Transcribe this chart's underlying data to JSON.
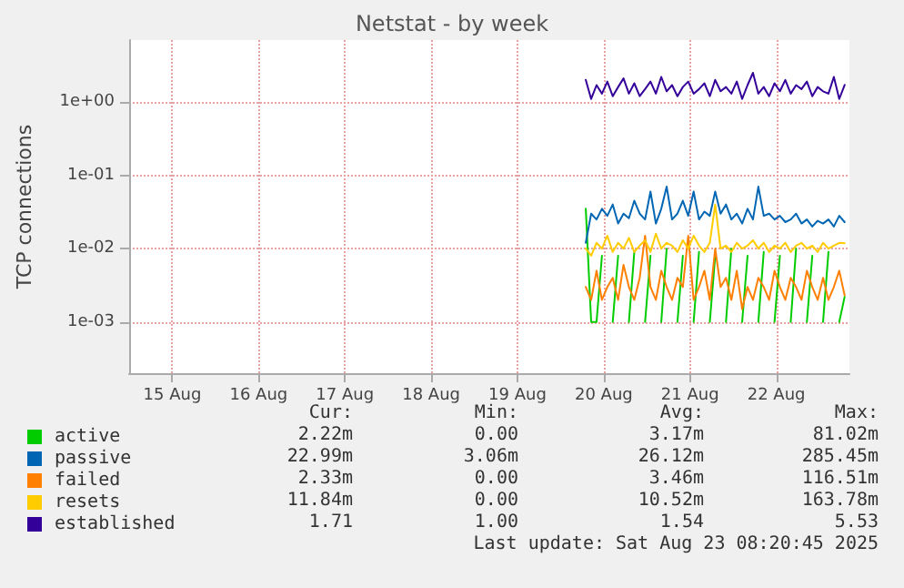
{
  "chart_data": {
    "type": "line",
    "title": "Netstat - by week",
    "ylabel": "TCP connections",
    "log": "y",
    "grid": true,
    "legend": "bottom left",
    "marker": "none",
    "line_style": "solid",
    "xlim": [
      "2025-08-15T00:00",
      "2025-08-23T08:20"
    ],
    "xticks": [
      {
        "value": "2025-08-15T12:00",
        "label": "15 Aug"
      },
      {
        "value": "2025-08-16T12:00",
        "label": "16 Aug"
      },
      {
        "value": "2025-08-17T12:00",
        "label": "17 Aug"
      },
      {
        "value": "2025-08-18T12:00",
        "label": "18 Aug"
      },
      {
        "value": "2025-08-19T12:00",
        "label": "19 Aug"
      },
      {
        "value": "2025-08-20T12:00",
        "label": "20 Aug"
      },
      {
        "value": "2025-08-21T12:00",
        "label": "21 Aug"
      },
      {
        "value": "2025-08-22T12:00",
        "label": "22 Aug"
      }
    ],
    "ylim": [
      0.0002,
      7
    ],
    "yticks": [
      {
        "value": 0.001,
        "label": "1e-03"
      },
      {
        "value": 0.01,
        "label": "1e-02"
      },
      {
        "value": 0.1,
        "label": "1e-01"
      },
      {
        "value": 1,
        "label": "1e+00"
      }
    ],
    "x": [
      "2025-08-20T07:00",
      "2025-08-20T08:30",
      "2025-08-20T10:00",
      "2025-08-20T11:30",
      "2025-08-20T13:00",
      "2025-08-20T14:30",
      "2025-08-20T16:00",
      "2025-08-20T17:30",
      "2025-08-20T19:00",
      "2025-08-20T20:30",
      "2025-08-20T22:00",
      "2025-08-20T23:30",
      "2025-08-21T01:00",
      "2025-08-21T02:30",
      "2025-08-21T04:00",
      "2025-08-21T05:30",
      "2025-08-21T07:00",
      "2025-08-21T08:30",
      "2025-08-21T10:00",
      "2025-08-21T11:30",
      "2025-08-21T13:00",
      "2025-08-21T14:30",
      "2025-08-21T16:00",
      "2025-08-21T17:30",
      "2025-08-21T19:00",
      "2025-08-21T20:30",
      "2025-08-21T22:00",
      "2025-08-21T23:30",
      "2025-08-22T01:00",
      "2025-08-22T02:30",
      "2025-08-22T04:00",
      "2025-08-22T05:30",
      "2025-08-22T07:00",
      "2025-08-22T08:30",
      "2025-08-22T10:00",
      "2025-08-22T11:30",
      "2025-08-22T13:00",
      "2025-08-22T14:30",
      "2025-08-22T16:00",
      "2025-08-22T17:30",
      "2025-08-22T19:00",
      "2025-08-22T20:30",
      "2025-08-22T22:00",
      "2025-08-22T23:30",
      "2025-08-23T01:00",
      "2025-08-23T02:30",
      "2025-08-23T04:00",
      "2025-08-23T05:30",
      "2025-08-23T07:00"
    ],
    "series": [
      {
        "name": "active",
        "color": "#00cc00",
        "values": [
          0.035,
          0.001,
          0.001,
          0.008,
          null,
          0.001,
          0.008,
          null,
          0.001,
          0.009,
          null,
          0.001,
          0.008,
          null,
          0.001,
          0.01,
          null,
          0.001,
          0.008,
          null,
          0.001,
          0.009,
          null,
          0.001,
          0.008,
          null,
          0.001,
          0.01,
          null,
          0.001,
          0.008,
          null,
          0.001,
          0.009,
          null,
          0.001,
          0.008,
          null,
          0.001,
          0.01,
          null,
          0.001,
          0.008,
          null,
          0.001,
          0.009,
          null,
          0.001,
          0.0022
        ]
      },
      {
        "name": "passive",
        "color": "#0066b3",
        "values": [
          0.012,
          0.03,
          0.025,
          0.035,
          0.028,
          0.04,
          0.022,
          0.03,
          0.026,
          0.045,
          0.03,
          0.025,
          0.06,
          0.022,
          0.035,
          0.07,
          0.025,
          0.03,
          0.045,
          0.028,
          0.06,
          0.025,
          0.032,
          0.028,
          0.06,
          0.03,
          0.04,
          0.025,
          0.03,
          0.022,
          0.035,
          0.025,
          0.07,
          0.028,
          0.03,
          0.025,
          0.028,
          0.023,
          0.025,
          0.03,
          0.022,
          0.025,
          0.02,
          0.024,
          0.022,
          0.025,
          0.02,
          0.028,
          0.023
        ]
      },
      {
        "name": "failed",
        "color": "#ff8000",
        "values": [
          0.003,
          0.002,
          0.005,
          0.002,
          0.003,
          0.004,
          0.002,
          0.006,
          0.003,
          0.002,
          0.004,
          0.015,
          0.003,
          0.002,
          0.005,
          0.003,
          0.002,
          0.004,
          0.003,
          0.015,
          0.002,
          0.003,
          0.005,
          0.002,
          0.01,
          0.003,
          0.004,
          0.002,
          0.005,
          0.0015,
          0.003,
          0.002,
          0.004,
          0.003,
          0.002,
          0.005,
          0.003,
          0.002,
          0.004,
          0.003,
          0.002,
          0.005,
          0.003,
          0.002,
          0.004,
          0.002,
          0.003,
          0.005,
          0.0023
        ]
      },
      {
        "name": "resets",
        "color": "#ffcc00",
        "values": [
          0.01,
          0.008,
          0.012,
          0.01,
          0.015,
          0.009,
          0.012,
          0.01,
          0.014,
          0.009,
          0.011,
          0.013,
          0.009,
          0.016,
          0.01,
          0.012,
          0.011,
          0.009,
          0.013,
          0.01,
          0.015,
          0.011,
          0.009,
          0.012,
          0.04,
          0.01,
          0.011,
          0.009,
          0.012,
          0.01,
          0.011,
          0.013,
          0.01,
          0.012,
          0.009,
          0.011,
          0.01,
          0.012,
          0.009,
          0.011,
          0.012,
          0.01,
          0.011,
          0.009,
          0.012,
          0.01,
          0.011,
          0.012,
          0.0118
        ]
      },
      {
        "name": "established",
        "color": "#330099",
        "values": [
          2.0,
          1.1,
          1.7,
          1.3,
          1.9,
          1.2,
          1.6,
          2.1,
          1.3,
          1.8,
          1.2,
          1.5,
          1.9,
          1.3,
          2.2,
          1.4,
          1.7,
          1.2,
          1.6,
          1.9,
          1.3,
          1.5,
          1.8,
          1.2,
          2.0,
          1.4,
          1.6,
          1.3,
          1.9,
          1.1,
          1.7,
          2.5,
          1.3,
          1.6,
          1.2,
          1.8,
          1.4,
          2.0,
          1.3,
          1.7,
          1.5,
          1.9,
          1.2,
          1.6,
          1.4,
          1.3,
          2.2,
          1.1,
          1.71
        ]
      }
    ],
    "annotations": [
      "Cur:",
      "Min:",
      "Avg:",
      "Max:",
      "2.22m",
      "0.00",
      "3.17m",
      "81.02m",
      "22.99m",
      "3.06m",
      "26.12m",
      "285.45m",
      "2.33m",
      "0.00",
      "3.46m",
      "116.51m",
      "11.84m",
      "0.00",
      "10.52m",
      "163.78m",
      "1.71",
      "1.00",
      "1.54",
      "5.53",
      "Last update: Sat Aug 23 08:20:45 2025"
    ]
  }
}
